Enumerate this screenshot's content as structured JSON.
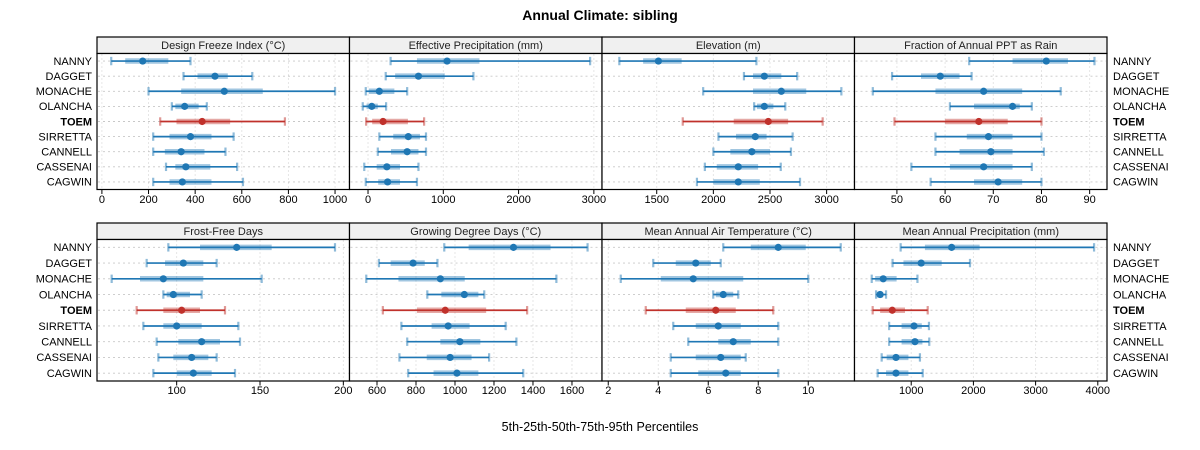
{
  "title": "Annual Climate: sibling",
  "xlabel": "5th-25th-50th-75th-95th Percentiles",
  "stations": [
    "NANNY",
    "DAGGET",
    "MONACHE",
    "OLANCHA",
    "TOEM",
    "SIRRETTA",
    "CANNELL",
    "CASSENAI",
    "CAGWIN"
  ],
  "highlight_station": "TOEM",
  "colors": {
    "normal": "#1f77b4",
    "highlight": "#c0312b",
    "strip_bg": "#f0f0f0",
    "grid": "#c8c8c8",
    "border": "#000000",
    "text": "#000000"
  },
  "chart_data": [
    {
      "type": "dot-whisker",
      "label": "Design Freeze Index (°C)",
      "ticks": [
        0,
        200,
        400,
        600,
        800,
        1000
      ],
      "xlim": [
        -21,
        1062
      ],
      "percentiles": {
        "NANNY": [
          40,
          100,
          175,
          285,
          380
        ],
        "DAGGET": [
          350,
          410,
          485,
          540,
          645
        ],
        "MONACHE": [
          200,
          340,
          525,
          690,
          1000
        ],
        "OLANCHA": [
          300,
          315,
          355,
          415,
          450
        ],
        "TOEM": [
          250,
          320,
          430,
          550,
          785
        ],
        "SIRRETTA": [
          220,
          290,
          380,
          470,
          565
        ],
        "CANNELL": [
          220,
          270,
          340,
          440,
          530
        ],
        "CASSENAI": [
          275,
          315,
          360,
          465,
          580
        ],
        "CAGWIN": [
          220,
          290,
          345,
          470,
          605
        ]
      }
    },
    {
      "type": "dot-whisker",
      "label": "Effective Precipitation (mm)",
      "ticks": [
        0,
        1000,
        2000,
        3000
      ],
      "xlim": [
        -246,
        3108
      ],
      "percentiles": {
        "NANNY": [
          300,
          650,
          1050,
          1480,
          2950
        ],
        "DAGGET": [
          235,
          360,
          670,
          1020,
          1400
        ],
        "MONACHE": [
          -30,
          10,
          150,
          350,
          520
        ],
        "OLANCHA": [
          -70,
          -20,
          50,
          130,
          240
        ],
        "TOEM": [
          -25,
          55,
          200,
          530,
          745
        ],
        "SIRRETTA": [
          150,
          335,
          535,
          690,
          770
        ],
        "CANNELL": [
          130,
          305,
          520,
          670,
          770
        ],
        "CASSENAI": [
          -50,
          115,
          250,
          425,
          670
        ],
        "CAGWIN": [
          -30,
          135,
          260,
          425,
          650
        ]
      }
    },
    {
      "type": "dot-whisker",
      "label": "Elevation (m)",
      "ticks": [
        1500,
        2000,
        2500,
        3000
      ],
      "xlim": [
        1017,
        3246
      ],
      "percentiles": {
        "NANNY": [
          1170,
          1380,
          1515,
          1720,
          2380
        ],
        "DAGGET": [
          2270,
          2350,
          2450,
          2600,
          2740
        ],
        "MONACHE": [
          1910,
          2350,
          2600,
          2820,
          3130
        ],
        "OLANCHA": [
          2360,
          2385,
          2450,
          2530,
          2635
        ],
        "TOEM": [
          1730,
          2180,
          2485,
          2660,
          2965
        ],
        "SIRRETTA": [
          2045,
          2200,
          2370,
          2470,
          2700
        ],
        "CANNELL": [
          2000,
          2150,
          2340,
          2500,
          2685
        ],
        "CASSENAI": [
          1925,
          2030,
          2220,
          2395,
          2595
        ],
        "CAGWIN": [
          1855,
          2000,
          2220,
          2410,
          2765
        ]
      }
    },
    {
      "type": "dot-whisker",
      "label": "Fraction of Annual PPT as Rain",
      "ticks": [
        50,
        60,
        70,
        80,
        90
      ],
      "xlim": [
        41.2,
        93.6
      ],
      "percentiles": {
        "NANNY": [
          65,
          74,
          81,
          85.5,
          91
        ],
        "DAGGET": [
          49,
          55,
          59,
          63,
          65.5
        ],
        "MONACHE": [
          45,
          58,
          68,
          76,
          84
        ],
        "OLANCHA": [
          61,
          66,
          74,
          75.5,
          78
        ],
        "TOEM": [
          49.5,
          60,
          67,
          73,
          80
        ],
        "SIRRETTA": [
          58,
          64.5,
          69,
          74,
          80
        ],
        "CANNELL": [
          58,
          63,
          69.5,
          74,
          80.5
        ],
        "CASSENAI": [
          53,
          61,
          68,
          74,
          78
        ],
        "CAGWIN": [
          57,
          66,
          71,
          76,
          80
        ]
      }
    },
    {
      "type": "dot-whisker",
      "label": "Frost-Free Days",
      "ticks": [
        100,
        150,
        200
      ],
      "xlim": [
        52.2,
        203.7
      ],
      "percentiles": {
        "NANNY": [
          95,
          114,
          136,
          157,
          195
        ],
        "DAGGET": [
          82,
          93,
          104,
          116,
          124
        ],
        "MONACHE": [
          61,
          78,
          92,
          116,
          151
        ],
        "OLANCHA": [
          92,
          94,
          98,
          108,
          115
        ],
        "TOEM": [
          76,
          92,
          103,
          114,
          129
        ],
        "SIRRETTA": [
          80,
          92,
          100,
          115,
          137
        ],
        "CANNELL": [
          88,
          101,
          115,
          126,
          138
        ],
        "CASSENAI": [
          89,
          98,
          109,
          119,
          124
        ],
        "CAGWIN": [
          86,
          100,
          110,
          121,
          135
        ]
      }
    },
    {
      "type": "dot-whisker",
      "label": "Growing Degree Days (°C)",
      "ticks": [
        600,
        800,
        1000,
        1200,
        1400,
        1600
      ],
      "xlim": [
        459,
        1754
      ],
      "percentiles": {
        "NANNY": [
          945,
          1070,
          1300,
          1490,
          1680
        ],
        "DAGGET": [
          610,
          670,
          785,
          845,
          910
        ],
        "MONACHE": [
          545,
          710,
          925,
          1050,
          1520
        ],
        "OLANCHA": [
          858,
          930,
          1048,
          1120,
          1150
        ],
        "TOEM": [
          630,
          805,
          950,
          1160,
          1370
        ],
        "SIRRETTA": [
          725,
          880,
          965,
          1075,
          1260
        ],
        "CANNELL": [
          755,
          925,
          1025,
          1130,
          1315
        ],
        "CASSENAI": [
          715,
          855,
          975,
          1085,
          1175
        ],
        "CAGWIN": [
          760,
          890,
          1010,
          1120,
          1350
        ]
      }
    },
    {
      "type": "dot-whisker",
      "label": "Mean Annual Air Temperature (°C)",
      "ticks": [
        2,
        4,
        6,
        8,
        10
      ],
      "xlim": [
        1.75,
        11.85
      ],
      "percentiles": {
        "NANNY": [
          6.6,
          7.7,
          8.8,
          9.9,
          11.3
        ],
        "DAGGET": [
          3.8,
          4.7,
          5.5,
          6.1,
          6.5
        ],
        "MONACHE": [
          2.5,
          4.1,
          5.4,
          7.4,
          10.0
        ],
        "OLANCHA": [
          6.2,
          6.3,
          6.6,
          7.0,
          7.2
        ],
        "TOEM": [
          3.5,
          5.1,
          6.3,
          7.1,
          8.6
        ],
        "SIRRETTA": [
          4.6,
          5.5,
          6.4,
          7.3,
          8.8
        ],
        "CANNELL": [
          5.2,
          6.4,
          7.0,
          7.7,
          8.8
        ],
        "CASSENAI": [
          4.5,
          5.5,
          6.5,
          7.3,
          7.5
        ],
        "CAGWIN": [
          4.5,
          5.6,
          6.7,
          7.3,
          8.8
        ]
      }
    },
    {
      "type": "dot-whisker",
      "label": "Mean Annual Precipitation (mm)",
      "ticks": [
        1000,
        2000,
        3000,
        4000
      ],
      "xlim": [
        88,
        4148
      ],
      "percentiles": {
        "NANNY": [
          830,
          1220,
          1650,
          2100,
          3940
        ],
        "DAGGET": [
          700,
          875,
          1160,
          1490,
          1945
        ],
        "MONACHE": [
          365,
          420,
          550,
          765,
          1100
        ],
        "OLANCHA": [
          435,
          445,
          500,
          550,
          595
        ],
        "TOEM": [
          380,
          500,
          695,
          900,
          1265
        ],
        "SIRRETTA": [
          645,
          845,
          1045,
          1170,
          1285
        ],
        "CANNELL": [
          645,
          845,
          1060,
          1180,
          1290
        ],
        "CASSENAI": [
          525,
          605,
          755,
          955,
          1140
        ],
        "CAGWIN": [
          460,
          595,
          755,
          955,
          1185
        ]
      }
    }
  ]
}
